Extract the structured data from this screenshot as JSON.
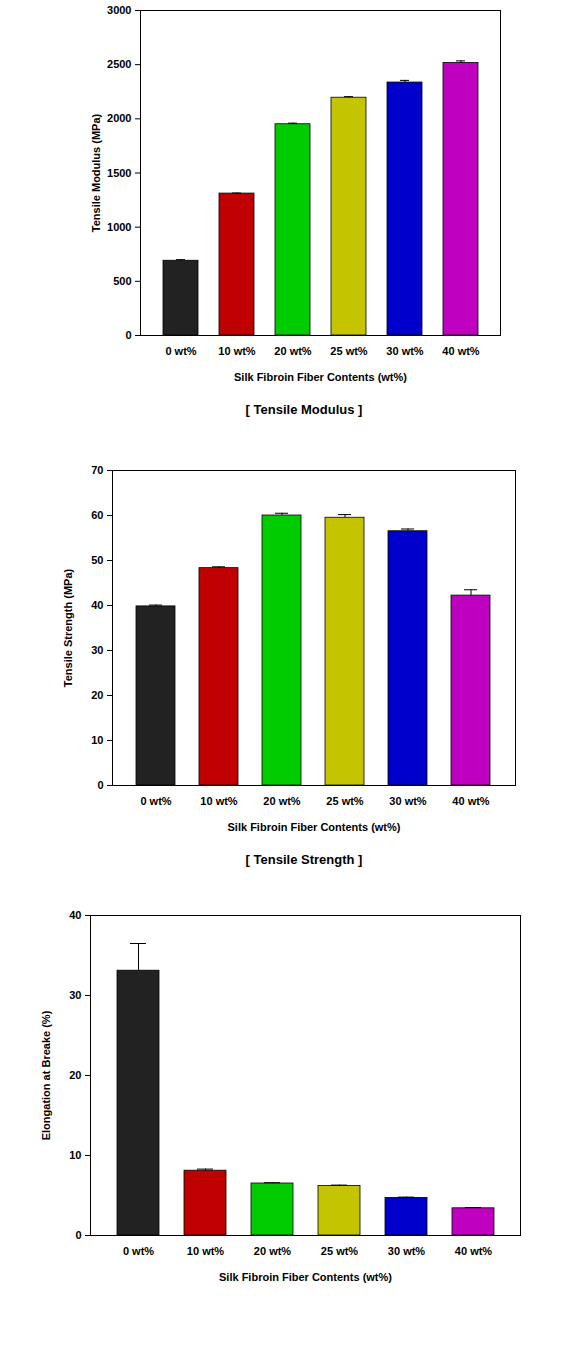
{
  "chart_data": [
    {
      "type": "bar",
      "caption": "[ Tensile Modulus ]",
      "x_label": "Silk Fibroin Fiber Contents (wt%)",
      "y_label": "Tensile Modulus (MPa)",
      "categories": [
        "0 wt%",
        "10 wt%",
        "20 wt%",
        "25 wt%",
        "30 wt%",
        "40 wt%"
      ],
      "values": [
        690,
        1310,
        1950,
        2195,
        2335,
        2515
      ],
      "errors": [
        10,
        5,
        10,
        10,
        20,
        20
      ],
      "colors": [
        "#222222",
        "#c00000",
        "#00cc00",
        "#c4c400",
        "#0000cc",
        "#c000c0"
      ],
      "ylim": [
        0,
        3000
      ],
      "yticks": [
        0,
        500,
        1000,
        1500,
        2000,
        2500,
        3000
      ]
    },
    {
      "type": "bar",
      "caption": "[ Tensile Strength ]",
      "x_label": "Silk Fibroin Fiber Contents (wt%)",
      "y_label": "Tensile Strength (MPa)",
      "categories": [
        "0 wt%",
        "10 wt%",
        "20 wt%",
        "25 wt%",
        "30 wt%",
        "40 wt%"
      ],
      "values": [
        39.8,
        48.3,
        60.0,
        59.5,
        56.5,
        42.2
      ],
      "errors": [
        0.3,
        0.3,
        0.5,
        0.7,
        0.5,
        1.3
      ],
      "colors": [
        "#222222",
        "#c00000",
        "#00cc00",
        "#c4c400",
        "#0000cc",
        "#c000c0"
      ],
      "ylim": [
        0,
        70
      ],
      "yticks": [
        0,
        10,
        20,
        30,
        40,
        50,
        60,
        70
      ]
    },
    {
      "type": "bar",
      "x_label": "Silk Fibroin Fiber Contents (wt%)",
      "y_label": "Elongation at Breake (%)",
      "categories": [
        "0 wt%",
        "10 wt%",
        "20 wt%",
        "25 wt%",
        "30 wt%",
        "40 wt%"
      ],
      "values": [
        33.1,
        8.1,
        6.5,
        6.2,
        4.7,
        3.4
      ],
      "errors": [
        3.4,
        0.2,
        0.1,
        0.1,
        0.1,
        0.1
      ],
      "colors": [
        "#222222",
        "#c00000",
        "#00cc00",
        "#c4c400",
        "#0000cc",
        "#c000c0"
      ],
      "ylim": [
        0,
        40
      ],
      "yticks": [
        0,
        10,
        20,
        30,
        40
      ]
    }
  ]
}
